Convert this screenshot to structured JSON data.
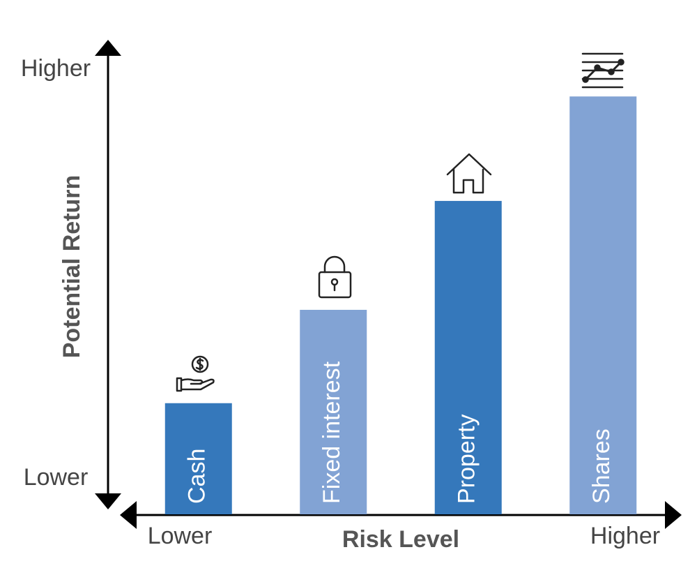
{
  "chart_data": {
    "type": "bar",
    "y_title": "Potential Return",
    "x_title": "Risk Level",
    "x_end_labels": [
      "Lower",
      "Higher"
    ],
    "categories": [
      "Cash",
      "Fixed interest",
      "Property",
      "Shares"
    ],
    "values": [
      25,
      46,
      70.5,
      94
    ],
    "colors": [
      "#3578bb",
      "#82a3d4",
      "#3578bb",
      "#82a3d4"
    ],
    "ylim": [
      0,
      100
    ],
    "yticks": [
      {
        "value": 8,
        "label": "Lower"
      },
      {
        "value": 100,
        "label": "Higher"
      }
    ]
  }
}
